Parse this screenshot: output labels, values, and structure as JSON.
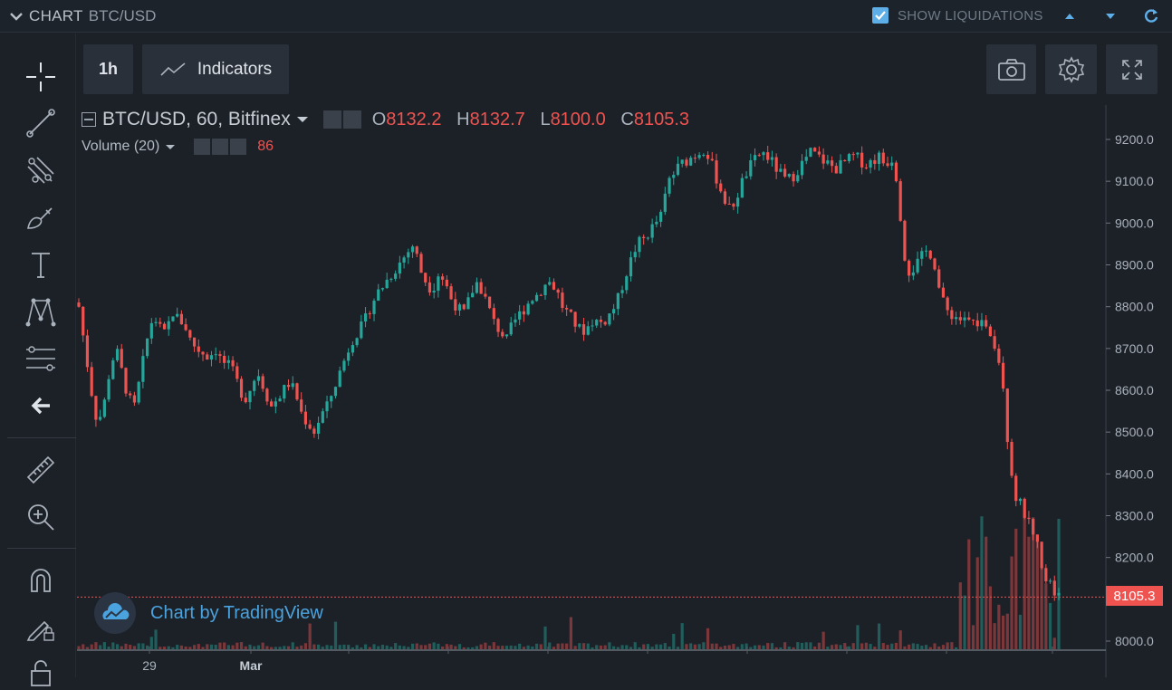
{
  "topbar": {
    "title": "CHART",
    "pair": "BTC/USD",
    "liquidations_label": "SHOW LIQUIDATIONS",
    "liquidations_checked": true
  },
  "toolbar": {
    "interval": "1h",
    "indicators": "Indicators"
  },
  "legend": {
    "symbol": "BTC/USD, 60, Bitfinex",
    "o_label": "O",
    "o": "8132.2",
    "h_label": "H",
    "h": "8132.7",
    "l_label": "L",
    "l": "8100.0",
    "c_label": "C",
    "c": "8105.3",
    "volume_label": "Volume (20)",
    "volume_value": "86"
  },
  "watermark": "Chart by TradingView",
  "last_price": "8105.3",
  "colors": {
    "up": "#26a69a",
    "down": "#ef5350",
    "bg": "#1c2128",
    "accent": "#5eaee8"
  },
  "tools": [
    "crosshair-icon",
    "trend-line-icon",
    "pitchfork-icon",
    "brush-icon",
    "text-icon",
    "pattern-icon",
    "fib-icon",
    "back-arrow-icon",
    "ruler-icon",
    "zoom-in-icon",
    "magnet-icon",
    "lock-drawing-icon",
    "lock-icon"
  ],
  "chart_data": {
    "type": "candlestick",
    "y_ticks": [
      "9200.0",
      "9100.0",
      "9000.0",
      "8900.0",
      "8800.0",
      "8700.0",
      "8600.0",
      "8500.0",
      "8400.0",
      "8300.0",
      "8200.0",
      "8000.0"
    ],
    "x_ticks": [
      "29",
      "Mar"
    ],
    "ylim": [
      7990,
      9240
    ],
    "path_close": [
      8800,
      8700,
      8600,
      8520,
      8560,
      8650,
      8700,
      8640,
      8580,
      8560,
      8640,
      8720,
      8780,
      8750,
      8730,
      8790,
      8770,
      8760,
      8720,
      8700,
      8690,
      8680,
      8700,
      8670,
      8660,
      8640,
      8600,
      8580,
      8620,
      8640,
      8600,
      8560,
      8580,
      8600,
      8620,
      8590,
      8540,
      8520,
      8500,
      8540,
      8560,
      8600,
      8640,
      8680,
      8720,
      8740,
      8760,
      8800,
      8830,
      8850,
      8870,
      8890,
      8910,
      8930,
      8950,
      8890,
      8860,
      8840,
      8880,
      8860,
      8820,
      8800,
      8780,
      8820,
      8860,
      8840,
      8800,
      8760,
      8740,
      8720,
      8760,
      8780,
      8800,
      8820,
      8830,
      8850,
      8860,
      8840,
      8800,
      8780,
      8760,
      8740,
      8750,
      8770,
      8760,
      8770,
      8790,
      8820,
      8870,
      8910,
      8950,
      8960,
      8980,
      9000,
      9020,
      9100,
      9120,
      9140,
      9150,
      9160,
      9170,
      9180,
      9140,
      9100,
      9060,
      9030,
      9060,
      9100,
      9130,
      9150,
      9170,
      9160,
      9140,
      9120,
      9100,
      9110,
      9130,
      9150,
      9170,
      9160,
      9150,
      9140,
      9130,
      9140,
      9150,
      9160,
      9150,
      9140,
      9150,
      9160,
      9140,
      9160,
      9100,
      8930,
      8880,
      8900,
      8920,
      8940,
      8900,
      8820,
      8790,
      8780,
      8770,
      8770,
      8760,
      8760,
      8770,
      8740,
      8700,
      8620,
      8440,
      8350,
      8320,
      8290,
      8260,
      8200,
      8150,
      8130,
      8105
    ],
    "n_candles": 230
  }
}
